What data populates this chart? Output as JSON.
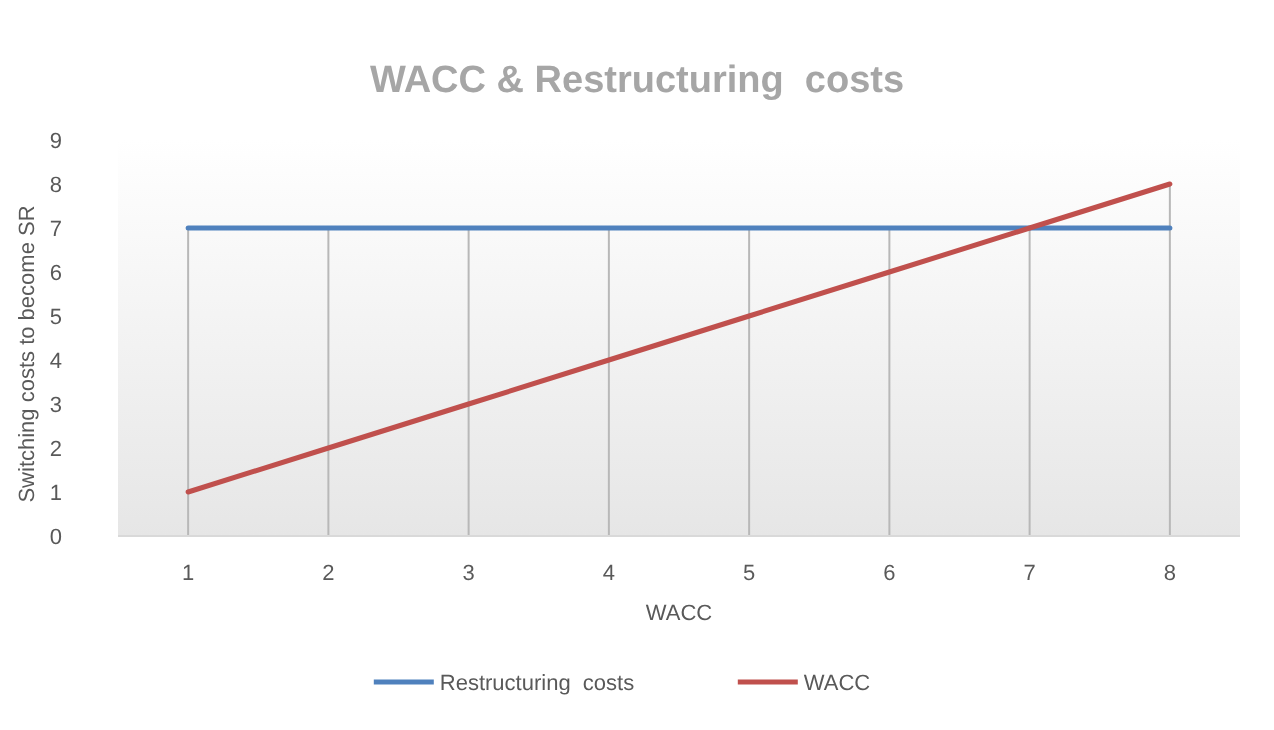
{
  "chart_data": {
    "type": "line",
    "title": "WACC & Restructuring  costs",
    "xlabel": "WACC",
    "ylabel": "Switching costs to become SR",
    "categories": [
      "1",
      "2",
      "3",
      "4",
      "5",
      "6",
      "7",
      "8"
    ],
    "series": [
      {
        "name": "Restructuring  costs",
        "color": "#4f81bd",
        "values": [
          7,
          7,
          7,
          7,
          7,
          7,
          7,
          7
        ]
      },
      {
        "name": "WACC",
        "color": "#c0504d",
        "values": [
          1,
          2,
          3,
          4,
          5,
          6,
          7,
          8
        ]
      }
    ],
    "ylim": [
      0,
      9
    ],
    "yticks": [
      0,
      1,
      2,
      3,
      4,
      5,
      6,
      7,
      8,
      9
    ],
    "grid": "x",
    "legend": "bottom",
    "marker": "none",
    "line_style": "solid"
  }
}
